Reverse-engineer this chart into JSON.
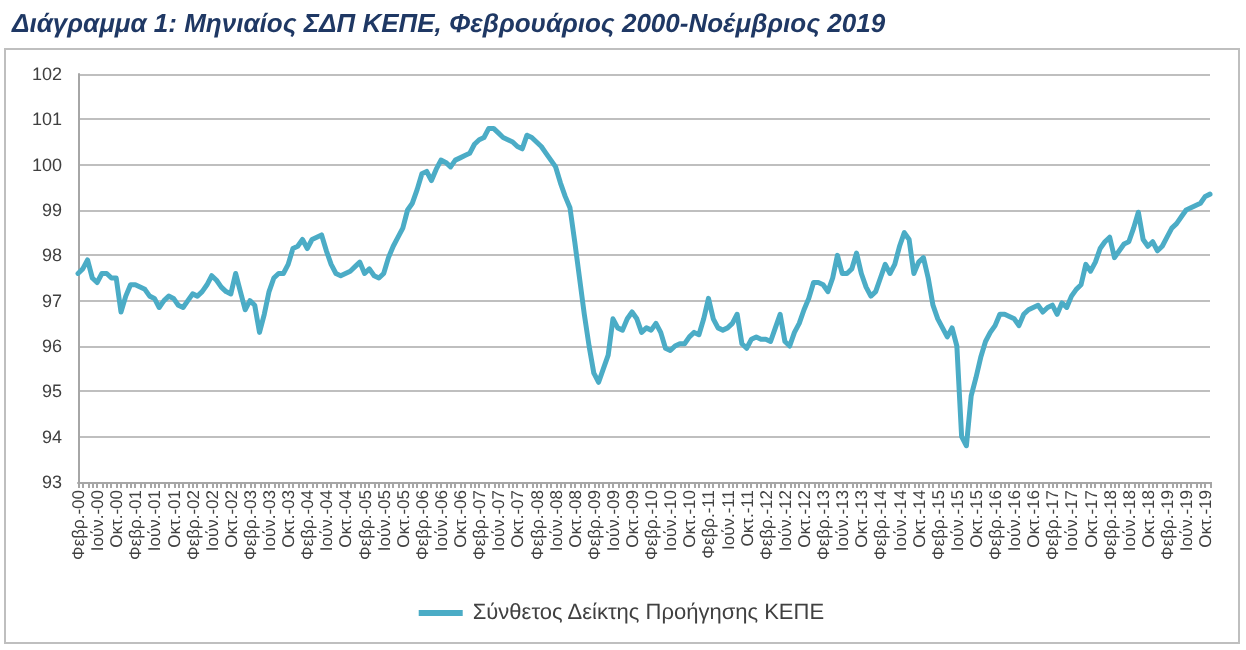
{
  "chart_data": {
    "type": "line",
    "title": "Διάγραμμα 1: Μηνιαίος ΣΔΠ ΚΕΠΕ, Φεβρουάριος 2000-Νοέμβριος 2019",
    "categories": [
      "Φεβρ.-00",
      null,
      null,
      null,
      "Ιούν.-00",
      null,
      null,
      null,
      "Οκτ.-00",
      null,
      null,
      null,
      "Φεβρ.-01",
      null,
      null,
      null,
      "Ιούν.-01",
      null,
      null,
      null,
      "Οκτ.-01",
      null,
      null,
      null,
      "Φεβρ.-02",
      null,
      null,
      null,
      "Ιούν.-02",
      null,
      null,
      null,
      "Οκτ.-02",
      null,
      null,
      null,
      "Φεβρ.-03",
      null,
      null,
      null,
      "Ιούν.-03",
      null,
      null,
      null,
      "Οκτ.-03",
      null,
      null,
      null,
      "Φεβρ.-04",
      null,
      null,
      null,
      "Ιούν.-04",
      null,
      null,
      null,
      "Οκτ.-04",
      null,
      null,
      null,
      "Φεβρ.-05",
      null,
      null,
      null,
      "Ιούν.-05",
      null,
      null,
      null,
      "Οκτ.-05",
      null,
      null,
      null,
      "Φεβρ.-06",
      null,
      null,
      null,
      "Ιούν.-06",
      null,
      null,
      null,
      "Οκτ.-06",
      null,
      null,
      null,
      "Φεβρ.-07",
      null,
      null,
      null,
      "Ιούν.-07",
      null,
      null,
      null,
      "Οκτ.-07",
      null,
      null,
      null,
      "Φεβρ.-08",
      null,
      null,
      null,
      "Ιούν.-08",
      null,
      null,
      null,
      "Οκτ.-08",
      null,
      null,
      null,
      "Φεβρ.-09",
      null,
      null,
      null,
      "Ιούν.-09",
      null,
      null,
      null,
      "Οκτ.-09",
      null,
      null,
      null,
      "Φεβρ.-10",
      null,
      null,
      null,
      "Ιούν.-10",
      null,
      null,
      null,
      "Οκτ.-10",
      null,
      null,
      null,
      "Φεβρ.-11",
      null,
      null,
      null,
      "Ιούν.-11",
      null,
      null,
      null,
      "Οκτ.-11",
      null,
      null,
      null,
      "Φεβρ.-12",
      null,
      null,
      null,
      "Ιούν.-12",
      null,
      null,
      null,
      "Οκτ.-12",
      null,
      null,
      null,
      "Φεβρ.-13",
      null,
      null,
      null,
      "Ιούν.-13",
      null,
      null,
      null,
      "Οκτ.-13",
      null,
      null,
      null,
      "Φεβρ.-14",
      null,
      null,
      null,
      "Ιούν.-14",
      null,
      null,
      null,
      "Οκτ.-14",
      null,
      null,
      null,
      "Φεβρ.-15",
      null,
      null,
      null,
      "Ιούν.-15",
      null,
      null,
      null,
      "Οκτ.-15",
      null,
      null,
      null,
      "Φεβρ.-16",
      null,
      null,
      null,
      "Ιούν.-16",
      null,
      null,
      null,
      "Οκτ.-16",
      null,
      null,
      null,
      "Φεβρ.-17",
      null,
      null,
      null,
      "Ιούν.-17",
      null,
      null,
      null,
      "Οκτ.-17",
      null,
      null,
      null,
      "Φεβρ.-18",
      null,
      null,
      null,
      "Ιούν.-18",
      null,
      null,
      null,
      "Οκτ.-18",
      null,
      null,
      null,
      "Φεβρ.-19",
      null,
      null,
      null,
      "Ιούν.-19",
      null,
      null,
      null,
      "Οκτ.-19",
      null
    ],
    "series": [
      {
        "name": "Σύνθετος Δείκτης Προήγησης ΚΕΠΕ",
        "color": "#4bacc6",
        "values": [
          97.6,
          97.7,
          97.9,
          97.5,
          97.4,
          97.6,
          97.6,
          97.5,
          97.5,
          96.75,
          97.1,
          97.35,
          97.35,
          97.3,
          97.25,
          97.1,
          97.05,
          96.85,
          97.0,
          97.1,
          97.05,
          96.9,
          96.85,
          97.0,
          97.15,
          97.1,
          97.2,
          97.35,
          97.55,
          97.45,
          97.3,
          97.2,
          97.15,
          97.6,
          97.2,
          96.8,
          97.0,
          96.9,
          96.3,
          96.7,
          97.2,
          97.5,
          97.6,
          97.6,
          97.8,
          98.15,
          98.2,
          98.35,
          98.15,
          98.35,
          98.4,
          98.45,
          98.1,
          97.8,
          97.6,
          97.55,
          97.6,
          97.65,
          97.75,
          97.85,
          97.6,
          97.7,
          97.55,
          97.5,
          97.6,
          97.95,
          98.2,
          98.4,
          98.6,
          99.0,
          99.15,
          99.45,
          99.8,
          99.85,
          99.65,
          99.9,
          100.1,
          100.05,
          99.95,
          100.1,
          100.15,
          100.2,
          100.25,
          100.45,
          100.55,
          100.6,
          100.8,
          100.8,
          100.7,
          100.6,
          100.55,
          100.5,
          100.4,
          100.35,
          100.65,
          100.6,
          100.5,
          100.4,
          100.25,
          100.1,
          99.95,
          99.6,
          99.3,
          99.05,
          98.3,
          97.5,
          96.7,
          96.0,
          95.4,
          95.2,
          95.5,
          95.8,
          96.6,
          96.4,
          96.35,
          96.6,
          96.75,
          96.6,
          96.3,
          96.4,
          96.35,
          96.5,
          96.3,
          95.95,
          95.9,
          96.0,
          96.05,
          96.05,
          96.2,
          96.3,
          96.25,
          96.6,
          97.05,
          96.6,
          96.4,
          96.35,
          96.4,
          96.5,
          96.7,
          96.05,
          95.95,
          96.15,
          96.2,
          96.15,
          96.15,
          96.1,
          96.4,
          96.7,
          96.1,
          96.0,
          96.3,
          96.5,
          96.8,
          97.05,
          97.4,
          97.4,
          97.35,
          97.2,
          97.5,
          98.0,
          97.6,
          97.6,
          97.7,
          98.05,
          97.6,
          97.3,
          97.1,
          97.2,
          97.5,
          97.8,
          97.6,
          97.8,
          98.2,
          98.5,
          98.35,
          97.6,
          97.85,
          97.95,
          97.5,
          96.9,
          96.6,
          96.4,
          96.2,
          96.4,
          96.0,
          94.0,
          93.8,
          94.9,
          95.3,
          95.75,
          96.1,
          96.3,
          96.45,
          96.7,
          96.7,
          96.65,
          96.6,
          96.45,
          96.7,
          96.8,
          96.85,
          96.9,
          96.75,
          96.85,
          96.9,
          96.7,
          96.95,
          96.85,
          97.1,
          97.25,
          97.35,
          97.8,
          97.65,
          97.85,
          98.15,
          98.3,
          98.4,
          97.95,
          98.1,
          98.25,
          98.3,
          98.6,
          98.95,
          98.35,
          98.2,
          98.3,
          98.1,
          98.2,
          98.4,
          98.6,
          98.7,
          98.85,
          99.0,
          99.05,
          99.1,
          99.15,
          99.3,
          99.35
        ]
      }
    ],
    "ylim": [
      93,
      102
    ],
    "yticks": [
      93,
      94,
      95,
      96,
      97,
      98,
      99,
      100,
      101,
      102
    ],
    "grid": "y",
    "legend": "bottom",
    "marker": "none",
    "line_style": "solid"
  }
}
